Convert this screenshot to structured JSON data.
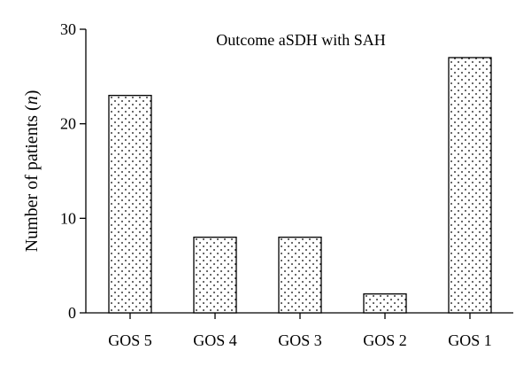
{
  "chart_data": {
    "type": "bar",
    "title": "Outcome aSDH with SAH",
    "xlabel": "",
    "ylabel": "Number of patients (n)",
    "ylabel_parts": {
      "prefix": "Number of patients (",
      "italic": "n",
      "suffix": ")"
    },
    "categories": [
      "GOS 5",
      "GOS 4",
      "GOS 3",
      "GOS 2",
      "GOS 1"
    ],
    "values": [
      23,
      8,
      8,
      2,
      27
    ],
    "ylim": [
      0,
      30
    ],
    "yticks": [
      0,
      10,
      20,
      30
    ],
    "grid": false,
    "legend": "none",
    "bar_fill": "dotted-pattern",
    "colors": {
      "bar_fill": "#ffffff",
      "bar_stroke": "#000000",
      "dot": "#000000",
      "axis": "#000000"
    }
  }
}
